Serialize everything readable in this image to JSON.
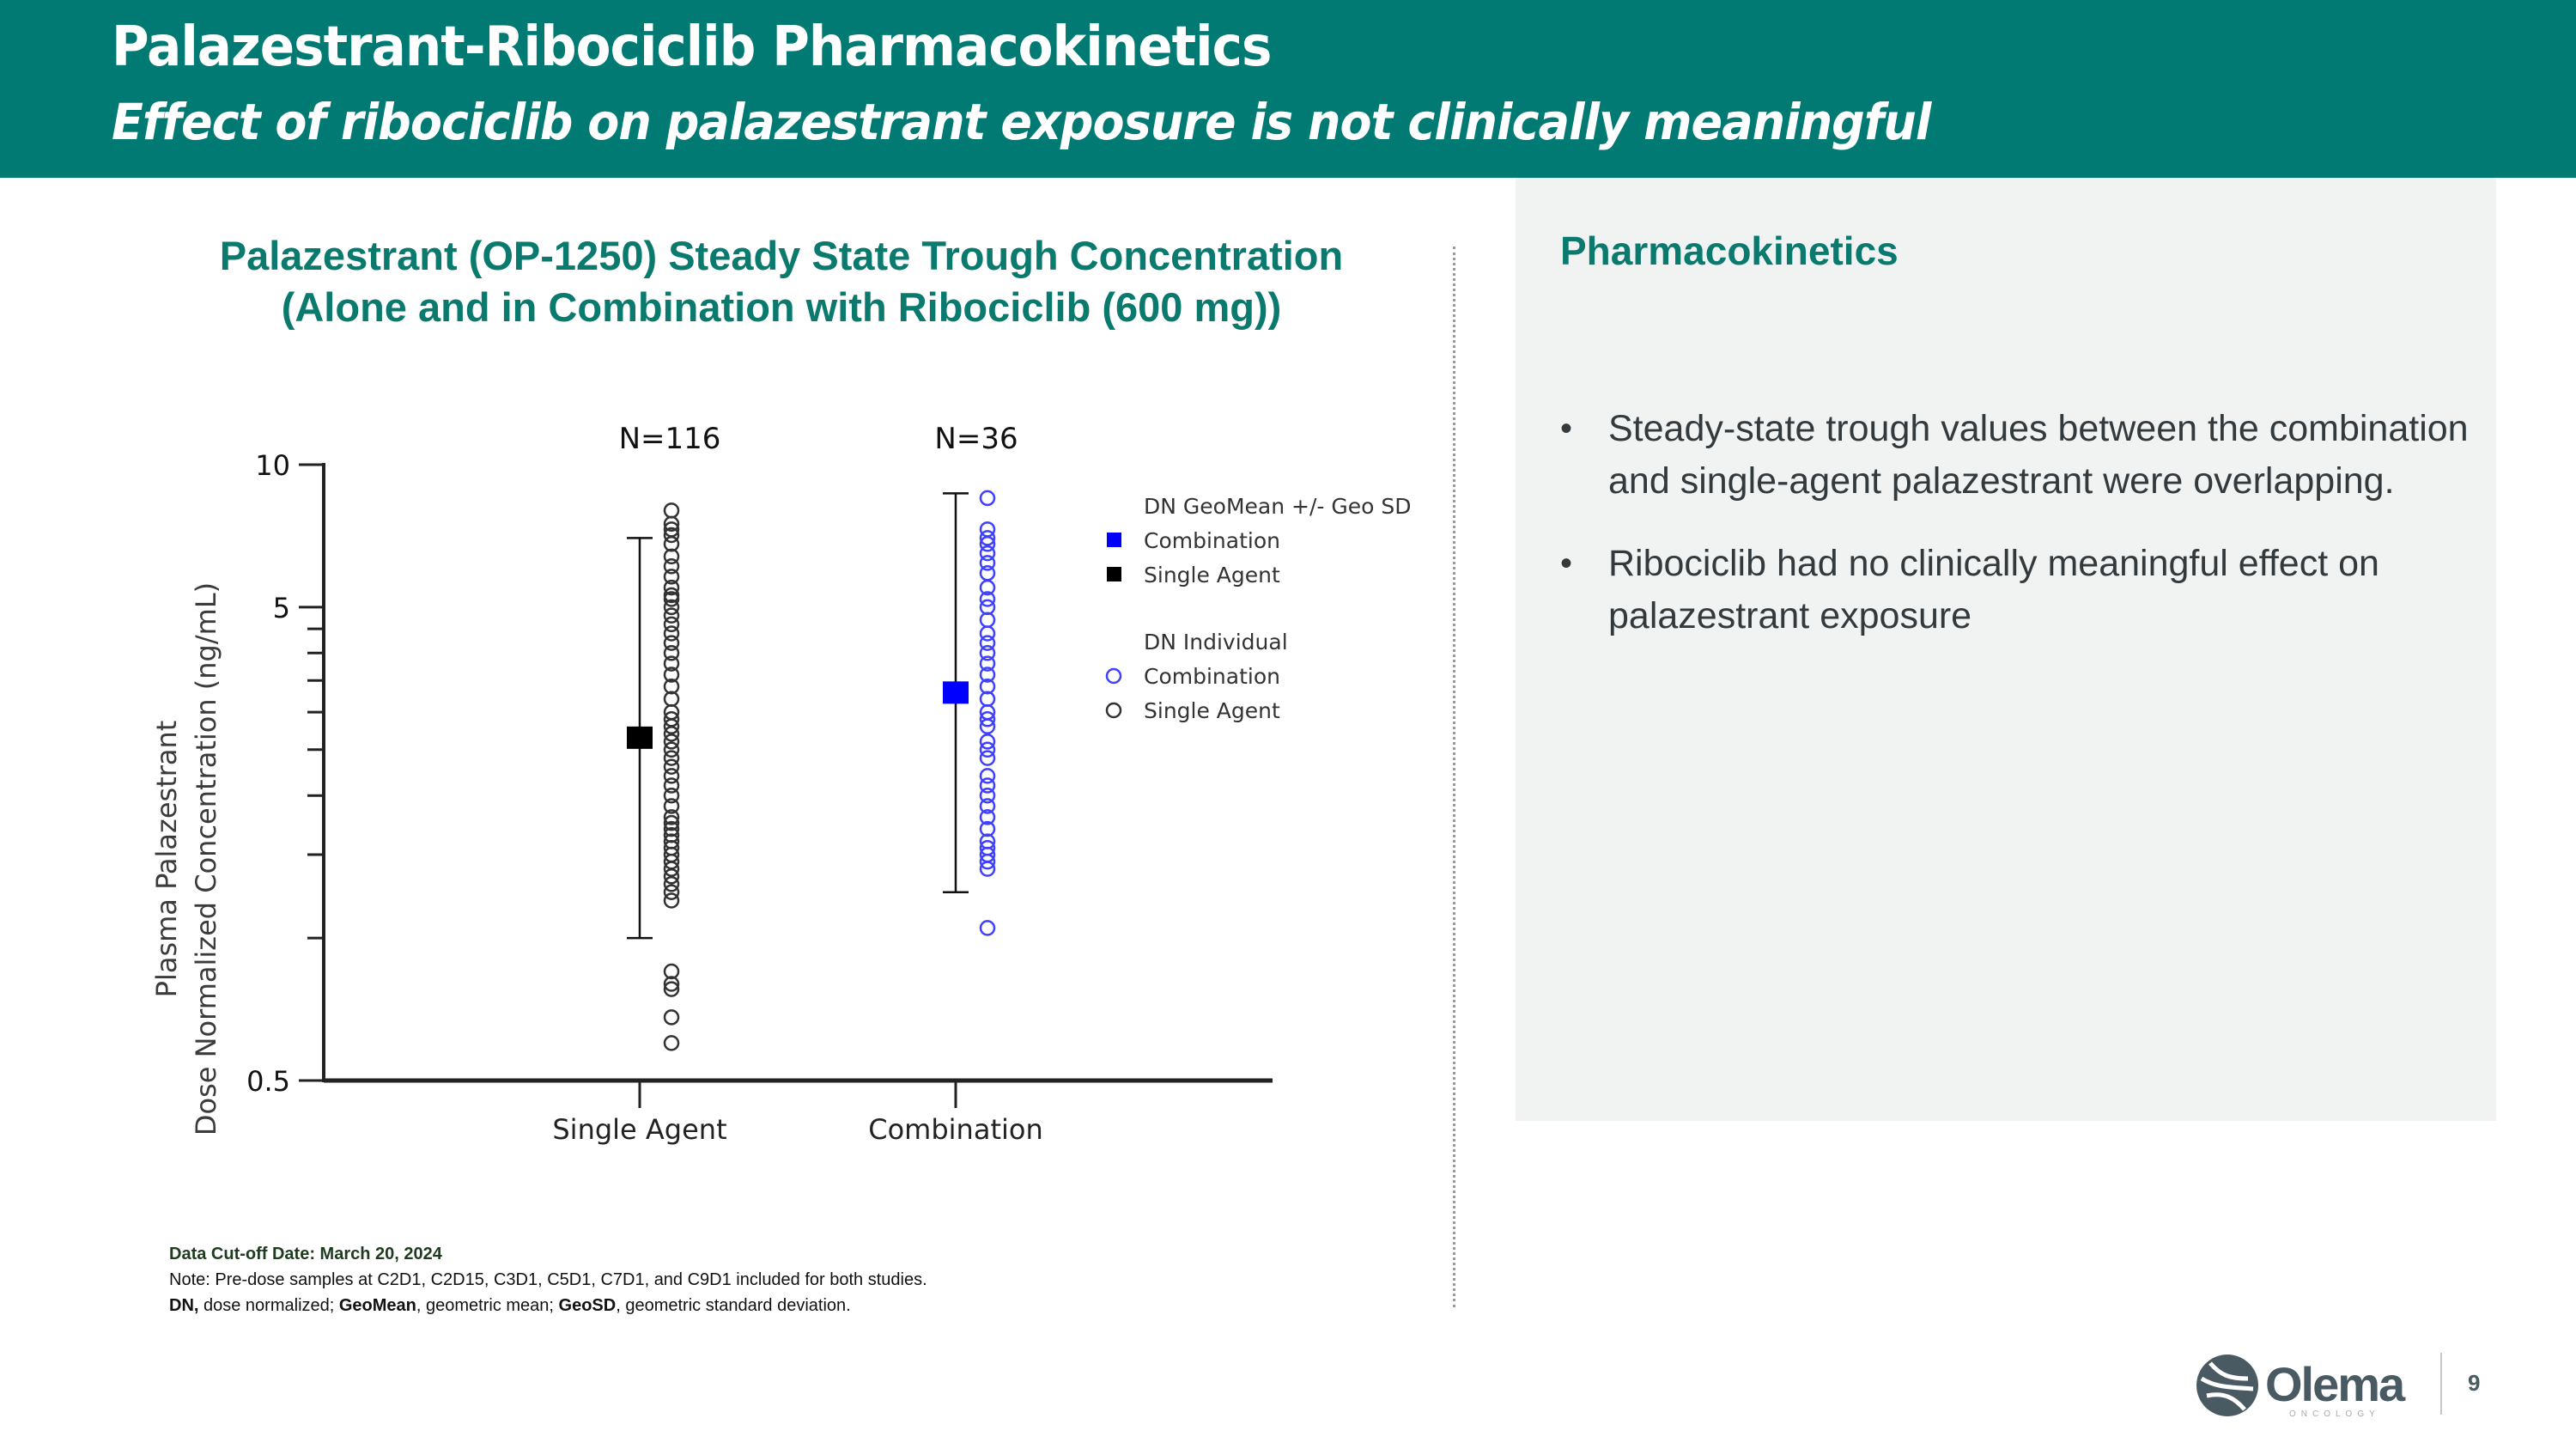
{
  "header": {
    "title": "Palazestrant-Ribociclib Pharmacokinetics",
    "subtitle": "Effect of ribociclib on palazestrant exposure is not clinically meaningful",
    "background_color": "#007a73"
  },
  "chart_title": {
    "line1": "Palazestrant (OP-1250) Steady State Trough Concentration",
    "line2": "(Alone and in Combination with Ribociclib (600 mg))"
  },
  "chart_data": {
    "type": "scatter",
    "title": "Palazestrant (OP-1250) Steady State Trough Concentration (Alone and in Combination with Ribociclib (600 mg))",
    "xlabel": "",
    "ylabel": "Plasma Palazestrant Dose Normalized Concentration (ng/mL)",
    "yscale": "log",
    "ylim": [
      0.5,
      10
    ],
    "ytick_labels": [
      "10",
      "5",
      "0.5"
    ],
    "minor_ticks": [
      4.5,
      4,
      3.5,
      3,
      2.5,
      2,
      1.5,
      1
    ],
    "categories": [
      "Single Agent",
      "Combination"
    ],
    "n_labels": [
      "N=116",
      "N=36"
    ],
    "grid": false,
    "legend_position": "right",
    "legend": {
      "group1_title": "DN GeoMean +/- Geo SD",
      "group1_items": [
        {
          "label": "Combination",
          "marker": "filled-square",
          "color": "#0000ff"
        },
        {
          "label": "Single Agent",
          "marker": "filled-square",
          "color": "#000000"
        }
      ],
      "group2_title": "DN Individual",
      "group2_items": [
        {
          "label": "Combination",
          "marker": "open-circle",
          "color": "#4040ff"
        },
        {
          "label": "Single Agent",
          "marker": "open-circle",
          "color": "#333333"
        }
      ]
    },
    "series": [
      {
        "name": "Single Agent",
        "color": "#000000",
        "geomean": 2.65,
        "geosd_upper": 7.0,
        "geosd_lower": 1.0,
        "individual_range": [
          0.55,
          8.0
        ],
        "individual_values": [
          8.0,
          7.5,
          7.3,
          7.1,
          6.8,
          6.4,
          6.1,
          5.8,
          5.5,
          5.3,
          5.2,
          5.0,
          4.8,
          4.6,
          4.4,
          4.2,
          4.0,
          3.8,
          3.6,
          3.4,
          3.2,
          3.0,
          2.9,
          2.8,
          2.7,
          2.6,
          2.5,
          2.4,
          2.3,
          2.2,
          2.1,
          2.0,
          1.9,
          1.8,
          1.75,
          1.7,
          1.65,
          1.6,
          1.55,
          1.5,
          1.45,
          1.4,
          1.35,
          1.3,
          1.25,
          1.2,
          0.85,
          0.8,
          0.78,
          0.68,
          0.6
        ]
      },
      {
        "name": "Combination",
        "color": "#0000ff",
        "geomean": 3.3,
        "geosd_upper": 8.7,
        "geosd_lower": 1.25,
        "individual_range": [
          1.05,
          8.5
        ],
        "individual_values": [
          8.5,
          7.3,
          7.0,
          6.8,
          6.5,
          6.2,
          5.9,
          5.5,
          5.2,
          5.0,
          4.7,
          4.4,
          4.2,
          4.0,
          3.8,
          3.6,
          3.4,
          3.2,
          3.0,
          2.9,
          2.8,
          2.6,
          2.5,
          2.4,
          2.2,
          2.1,
          2.0,
          1.9,
          1.8,
          1.7,
          1.6,
          1.55,
          1.5,
          1.45,
          1.4,
          1.05
        ]
      }
    ]
  },
  "right_panel": {
    "title": "Pharmacokinetics",
    "bullets": [
      "Steady-state trough values between the combination and single-agent palazestrant were overlapping.",
      "Ribociclib had no clinically meaningful effect on palazestrant exposure"
    ],
    "background_color": "#f1f3f2"
  },
  "footnote": {
    "cutoff": "Data Cut-off Date: March 20, 2024",
    "note": "Note: Pre-dose samples at C2D1, C2D15,  C3D1, C5D1, C7D1, and C9D1 included for both studies.",
    "abbr_dn": "DN,",
    "abbr_dn_text": " dose normalized; ",
    "abbr_geomean": "GeoMean",
    "abbr_geomean_text": ", geometric mean; ",
    "abbr_geosd": "GeoSD",
    "abbr_geosd_text": ", geometric standard deviation."
  },
  "footer": {
    "logo_text": "Olema",
    "logo_sub": "ONCOLOGY",
    "page_number": "9"
  }
}
